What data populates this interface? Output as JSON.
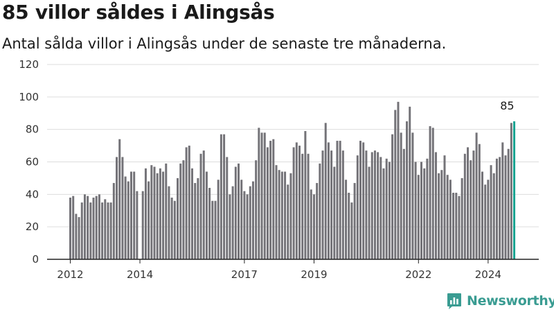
{
  "title": "85 villor såldes i Alingsås",
  "subtitle": "Antal sålda villor i Alingsås under de senaste tre månaderna.",
  "brand": {
    "name": "Newsworthy",
    "icon": "newsworthy-logo-icon"
  },
  "colors": {
    "bar": "#747378",
    "highlight": "#17a391",
    "grid": "#dddddd",
    "axis": "#222222"
  },
  "chart_data": {
    "type": "bar",
    "title": "85 villor såldes i Alingsås",
    "subtitle": "Antal sålda villor i Alingsås under de senaste tre månaderna.",
    "xlabel": "",
    "ylabel": "",
    "ylim": [
      0,
      120
    ],
    "yticks": [
      0,
      20,
      40,
      60,
      80,
      100,
      120
    ],
    "grid": true,
    "legend": "none",
    "start_month": "2012-01",
    "x_tick_labels": [
      {
        "label": "2012",
        "month": "2012-01"
      },
      {
        "label": "2014",
        "month": "2014-01"
      },
      {
        "label": "2017",
        "month": "2017-01"
      },
      {
        "label": "2019",
        "month": "2019-01"
      },
      {
        "label": "2022",
        "month": "2022-01"
      },
      {
        "label": "2024",
        "month": "2024-01"
      }
    ],
    "values": [
      38,
      39,
      28,
      26,
      35,
      40,
      39,
      35,
      38,
      39,
      40,
      35,
      37,
      35,
      35,
      47,
      63,
      74,
      63,
      51,
      48,
      54,
      54,
      42,
      0,
      42,
      56,
      48,
      58,
      57,
      53,
      56,
      54,
      59,
      45,
      38,
      36,
      50,
      59,
      61,
      69,
      70,
      56,
      47,
      50,
      65,
      67,
      54,
      44,
      36,
      36,
      49,
      77,
      77,
      63,
      40,
      45,
      57,
      59,
      49,
      42,
      40,
      45,
      48,
      61,
      81,
      78,
      78,
      69,
      73,
      74,
      58,
      55,
      54,
      54,
      46,
      53,
      69,
      72,
      70,
      65,
      79,
      65,
      43,
      40,
      47,
      59,
      67,
      84,
      72,
      67,
      57,
      73,
      73,
      67,
      49,
      41,
      35,
      47,
      64,
      73,
      72,
      67,
      57,
      66,
      67,
      66,
      63,
      56,
      62,
      60,
      77,
      92,
      97,
      78,
      68,
      85,
      94,
      78,
      60,
      52,
      60,
      56,
      62,
      82,
      81,
      66,
      53,
      55,
      64,
      52,
      49,
      41,
      41,
      39,
      50,
      65,
      69,
      61,
      67,
      78,
      71,
      54,
      46,
      49,
      58,
      53,
      62,
      63,
      72,
      64,
      68,
      84,
      85
    ],
    "highlight_last": true,
    "annotations": [
      {
        "label": "85",
        "target": "last_bar"
      }
    ]
  }
}
